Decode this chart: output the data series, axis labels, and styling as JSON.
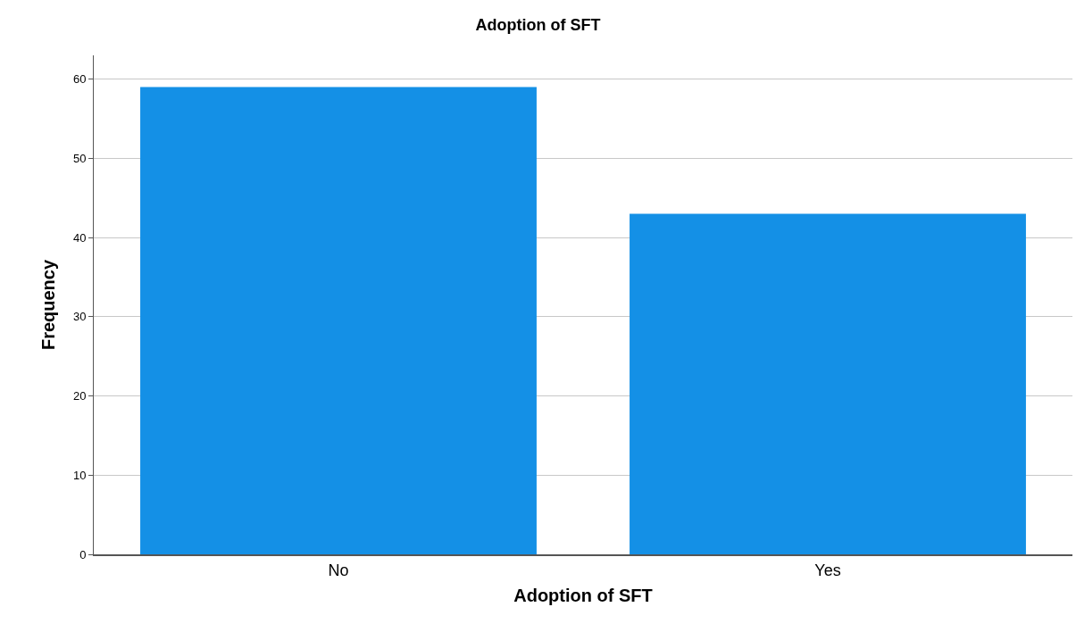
{
  "chart_data": {
    "type": "bar",
    "title": "Adoption of SFT",
    "xlabel": "Adoption of SFT",
    "ylabel": "Frequency",
    "categories": [
      "No",
      "Yes"
    ],
    "values": [
      59,
      43
    ],
    "color": "#1490e6",
    "ylim": [
      0,
      63
    ],
    "yticks": [
      0,
      10,
      20,
      30,
      40,
      50,
      60
    ],
    "grid": "y"
  }
}
